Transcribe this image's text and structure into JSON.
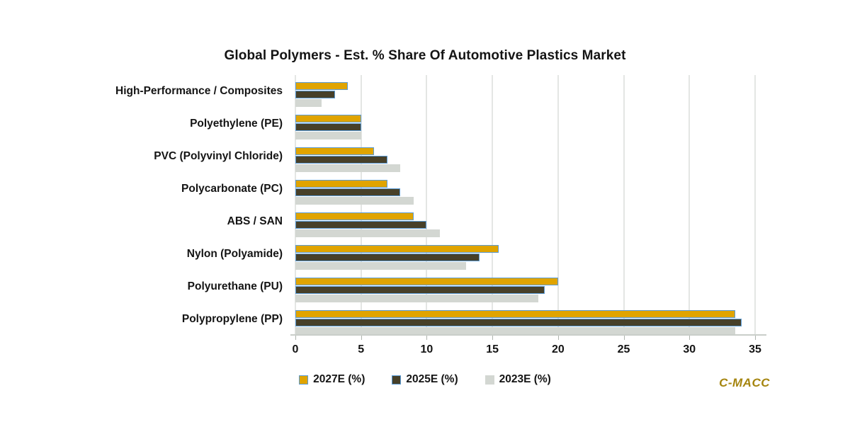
{
  "title": "Global Polymers - Est. % Share Of Automotive Plastics Market",
  "branding": {
    "logo_text": "C-MACC",
    "color": "#a5850f"
  },
  "colors": {
    "gold": "#e0a400",
    "dark": "#474029",
    "gray": "#d3d7d2",
    "bar_border_blue": "#5b9bd5",
    "gridline": "#e4e6e4",
    "axis_line": "#c9cec9",
    "tick_mark": "#aeb4ae",
    "text": "#141414",
    "background": "#ffffff"
  },
  "chart_data": {
    "type": "bar",
    "orientation": "horizontal",
    "title": "Global Polymers - Est. % Share Of Automotive Plastics Market",
    "categories": [
      "High-Performance / Composites",
      "Polyethylene (PE)",
      "PVC (Polyvinyl Chloride)",
      "Polycarbonate (PC)",
      "ABS / SAN",
      "Nylon (Polyamide)",
      "Polyurethane (PU)",
      "Polypropylene (PP)"
    ],
    "series": [
      {
        "name": "2027E (%)",
        "color_key": "gold",
        "outlined": true,
        "values": [
          4,
          5,
          6,
          7,
          9,
          15.5,
          20,
          33.5
        ]
      },
      {
        "name": "2025E (%)",
        "color_key": "dark",
        "outlined": true,
        "values": [
          3,
          5,
          7,
          8,
          10,
          14,
          19,
          34
        ]
      },
      {
        "name": "2023E (%)",
        "color_key": "gray",
        "outlined": false,
        "values": [
          2,
          5,
          8,
          9,
          11,
          13,
          18.5,
          33.5
        ]
      }
    ],
    "xlim": [
      0,
      35
    ],
    "xticks": [
      0,
      5,
      10,
      15,
      20,
      25,
      30,
      35
    ],
    "grid": "vertical",
    "legend_position": "bottom"
  }
}
